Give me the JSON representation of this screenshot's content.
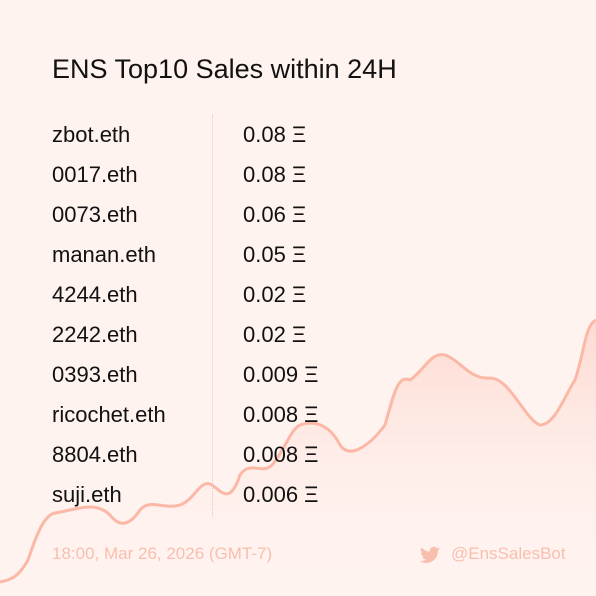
{
  "title": "ENS Top10 Sales within 24H",
  "sales": [
    {
      "name": "zbot.eth",
      "price": "0.08 Ξ"
    },
    {
      "name": "0017.eth",
      "price": "0.08 Ξ"
    },
    {
      "name": "0073.eth",
      "price": "0.06 Ξ"
    },
    {
      "name": "manan.eth",
      "price": "0.05 Ξ"
    },
    {
      "name": "4244.eth",
      "price": "0.02 Ξ"
    },
    {
      "name": "2242.eth",
      "price": "0.02 Ξ"
    },
    {
      "name": "0393.eth",
      "price": "0.009 Ξ"
    },
    {
      "name": "ricochet.eth",
      "price": "0.008 Ξ"
    },
    {
      "name": "8804.eth",
      "price": "0.008 Ξ"
    },
    {
      "name": "suji.eth",
      "price": "0.006 Ξ"
    }
  ],
  "footer": {
    "timestamp": "18:00, Mar 26, 2026 (GMT-7)",
    "handle": "@EnsSalesBot"
  }
}
